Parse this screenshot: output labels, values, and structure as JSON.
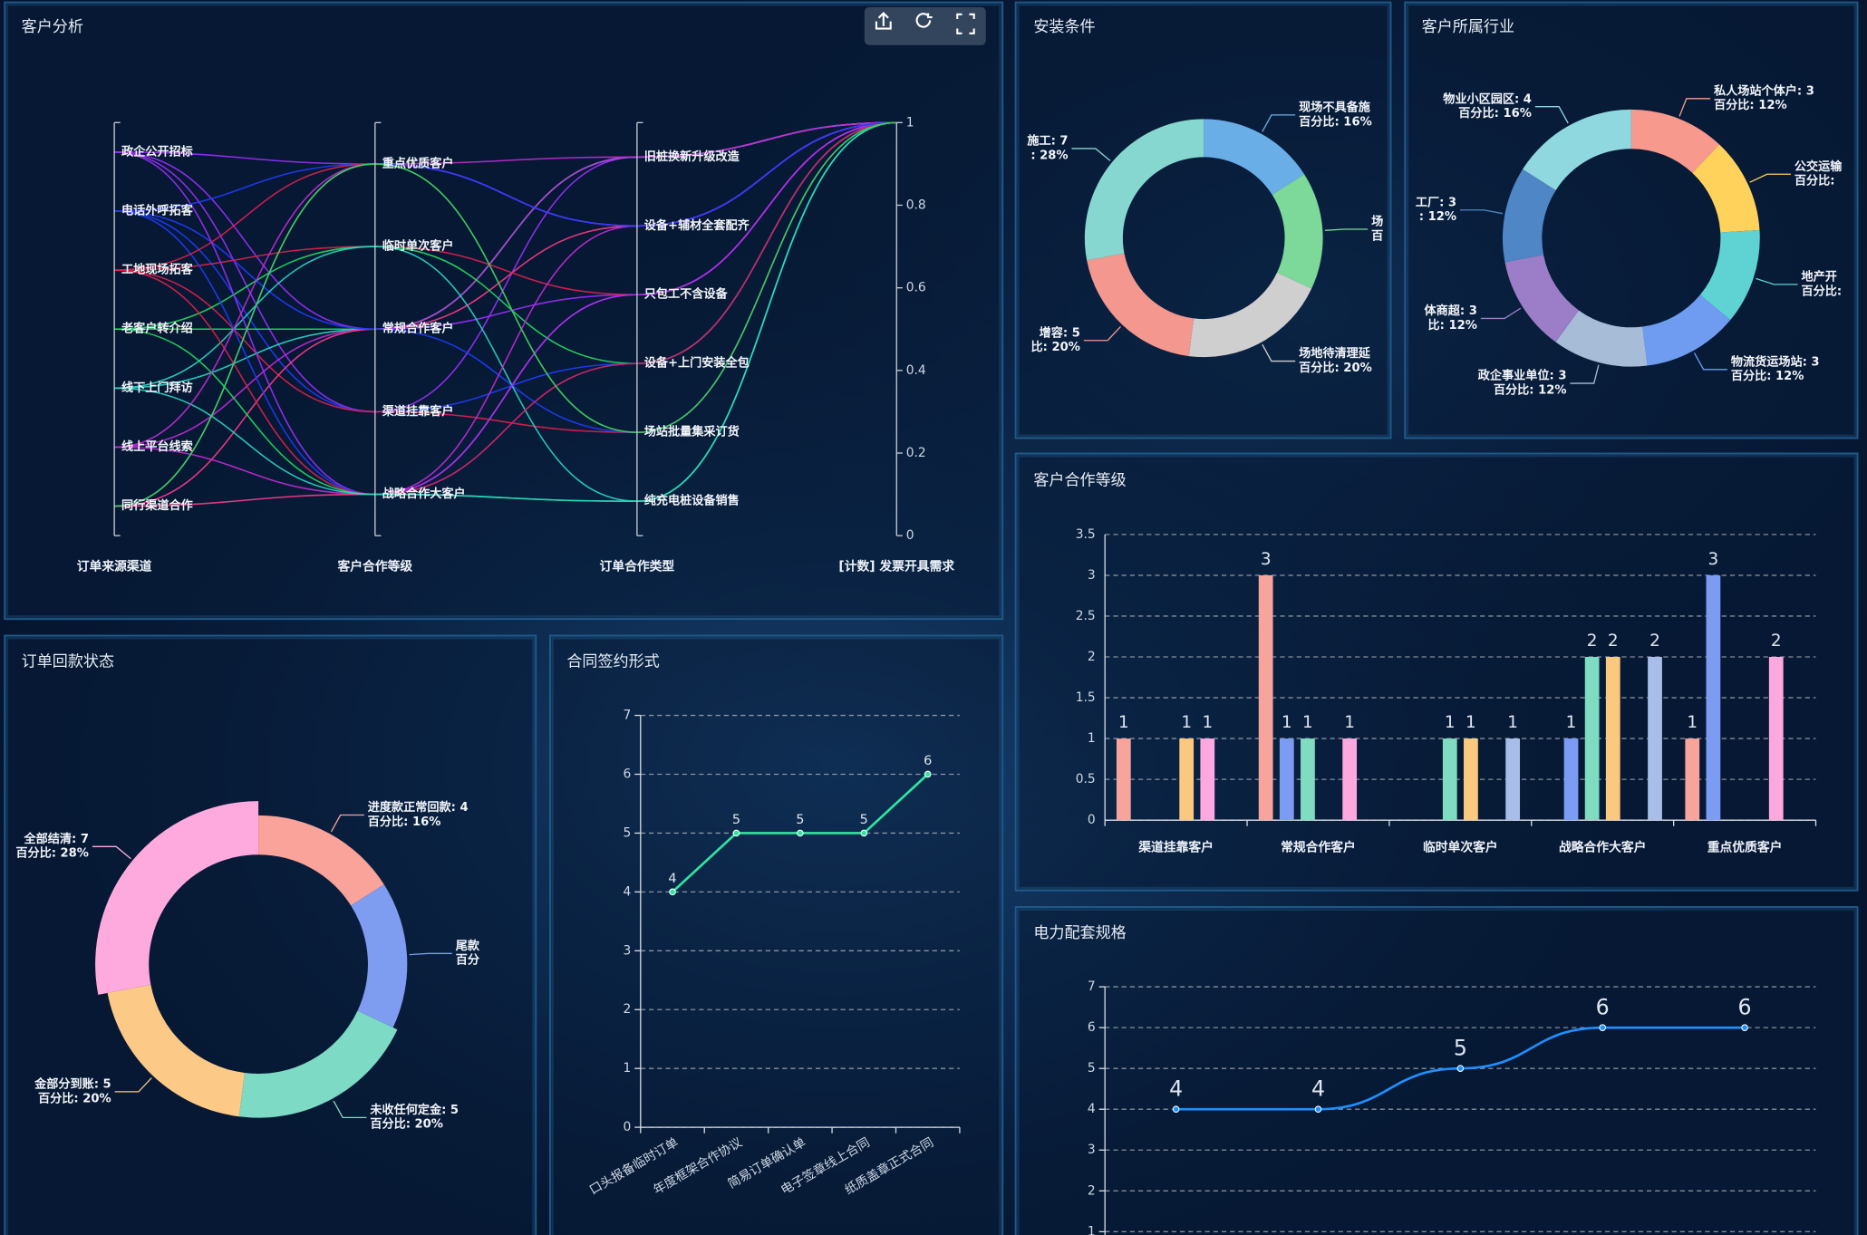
{
  "chart_data": [
    {
      "type": "parallel",
      "title": "客户分析",
      "axes": [
        {
          "name": "订单来源渠道",
          "categories": [
            "政企公开招标",
            "电话外呼拓客",
            "工地现场拓客",
            "老客户转介绍",
            "线下上门拜访",
            "线上平台线索",
            "同行渠道合作"
          ]
        },
        {
          "name": "客户合作等级",
          "categories": [
            "重点优质客户",
            "临时单次客户",
            "常规合作客户",
            "渠道挂靠客户",
            "战略合作大客户"
          ]
        },
        {
          "name": "订单合作类型",
          "categories": [
            "旧桩换新升级改造",
            "设备+辅材全套配齐",
            "只包工不含设备",
            "设备+上门安装全包",
            "场站批量集采订货",
            "纯充电桩设备销售"
          ]
        },
        {
          "name": "[计数] 发票开具需求",
          "ylim": [
            0,
            1
          ],
          "yticks": [
            0,
            0.2,
            0.4,
            0.6,
            0.8,
            1
          ]
        }
      ],
      "series": [
        {
          "color": "#9b30ff",
          "values": [
            "政企公开招标",
            "渠道挂靠客户",
            "旧桩换新升级改造",
            1
          ]
        },
        {
          "color": "#1f3dff",
          "values": [
            "电话外呼拓客",
            "渠道挂靠客户",
            "设备+上门安装全包",
            1
          ]
        },
        {
          "color": "#e0204f",
          "values": [
            "工地现场拓客",
            "渠道挂靠客户",
            "场站批量集采订货",
            1
          ]
        },
        {
          "color": "#20e060",
          "values": [
            "老客户转介绍",
            "常规合作客户",
            "旧桩换新升级改造",
            1
          ]
        },
        {
          "color": "#2ad8c8",
          "values": [
            "线下上门拜访",
            "常规合作客户",
            "旧桩换新升级改造",
            1
          ]
        },
        {
          "color": "#c42bd6",
          "values": [
            "线上平台线索",
            "常规合作客户",
            "旧桩换新升级改造",
            1
          ]
        },
        {
          "color": "#ff3b8a",
          "values": [
            "同行渠道合作",
            "常规合作客户",
            "设备+辅材全套配齐",
            1
          ]
        },
        {
          "color": "#9b30ff",
          "values": [
            "政企公开招标",
            "常规合作客户",
            "只包工不含设备",
            1
          ]
        },
        {
          "color": "#1f3dff",
          "values": [
            "电话外呼拓客",
            "常规合作客户",
            "场站批量集采订货",
            1
          ]
        },
        {
          "color": "#e0204f",
          "values": [
            "工地现场拓客",
            "临时单次客户",
            "只包工不含设备",
            1
          ]
        },
        {
          "color": "#20e060",
          "values": [
            "老客户转介绍",
            "临时单次客户",
            "设备+上门安装全包",
            1
          ]
        },
        {
          "color": "#2ad8c8",
          "values": [
            "线下上门拜访",
            "临时单次客户",
            "纯充电桩设备销售",
            1
          ]
        },
        {
          "color": "#c42bd6",
          "values": [
            "线上平台线索",
            "战略合作大客户",
            "设备+辅材全套配齐",
            1
          ]
        },
        {
          "color": "#ff3b8a",
          "values": [
            "同行渠道合作",
            "战略合作大客户",
            "只包工不含设备",
            1
          ]
        },
        {
          "color": "#9b30ff",
          "values": [
            "政企公开招标",
            "战略合作大客户",
            "只包工不含设备",
            1
          ]
        },
        {
          "color": "#1f3dff",
          "values": [
            "电话外呼拓客",
            "战略合作大客户",
            "设备+上门安装全包",
            1
          ]
        },
        {
          "color": "#e0204f",
          "values": [
            "工地现场拓客",
            "战略合作大客户",
            "设备+上门安装全包",
            1
          ]
        },
        {
          "color": "#20e060",
          "values": [
            "老客户转介绍",
            "战略合作大客户",
            "纯充电桩设备销售",
            1
          ]
        },
        {
          "color": "#2ad8c8",
          "values": [
            "线下上门拜访",
            "战略合作大客户",
            "纯充电桩设备销售",
            1
          ]
        },
        {
          "color": "#c42bd6",
          "values": [
            "线上平台线索",
            "重点优质客户",
            "旧桩换新升级改造",
            1
          ]
        },
        {
          "color": "#ff3b8a",
          "values": [
            "同行渠道合作",
            "重点优质客户",
            "设备+辅材全套配齐",
            1
          ]
        },
        {
          "color": "#9b30ff",
          "values": [
            "政企公开招标",
            "重点优质客户",
            "设备+辅材全套配齐",
            1
          ]
        },
        {
          "color": "#1f3dff",
          "values": [
            "电话外呼拓客",
            "重点优质客户",
            "设备+辅材全套配齐",
            1
          ]
        },
        {
          "color": "#e0204f",
          "values": [
            "工地现场拓客",
            "重点优质客户",
            "场站批量集采订货",
            1
          ]
        },
        {
          "color": "#20e060",
          "values": [
            "同行渠道合作",
            "重点优质客户",
            "场站批量集采订货",
            1
          ]
        }
      ]
    },
    {
      "type": "pie",
      "title": "安装条件",
      "values": [
        4,
        4,
        5,
        5,
        7
      ],
      "colors": [
        "#6aaee8",
        "#7cd99a",
        "#cfcfcf",
        "#f4978e",
        "#86d7d0"
      ],
      "value_labels": [
        [
          "现场不具备施",
          "百分比: 16%"
        ],
        [
          "场",
          "百"
        ],
        [
          "场地待清理延",
          "百分比: 20%"
        ],
        [
          "增容: 5",
          "比: 20%"
        ],
        [
          "施工: 7",
          ": 28%"
        ]
      ]
    },
    {
      "type": "pie",
      "title": "客户所属行业",
      "values": [
        3,
        3,
        3,
        3,
        3,
        3,
        3,
        4
      ],
      "colors": [
        "#f8998d",
        "#ffd25c",
        "#5fd3d3",
        "#6f9cf0",
        "#a7bcd6",
        "#9b7dc8",
        "#4f86c6",
        "#8fd8e0"
      ],
      "value_labels": [
        [
          "私人场站个体户: 3",
          "百分比: 12%"
        ],
        [
          "公交运输",
          "百分比:"
        ],
        [
          "地产开",
          "百分比:"
        ],
        [
          "物流货运场站: 3",
          "百分比: 12%"
        ],
        [
          "政企事业单位: 3",
          "百分比: 12%"
        ],
        [
          "体商超: 3",
          "比: 12%"
        ],
        [
          "工厂: 3",
          ": 12%"
        ],
        [
          "物业小区园区: 4",
          "百分比: 16%"
        ]
      ]
    },
    {
      "type": "bar",
      "title": "客户合作等级",
      "categories": [
        "渠道挂靠客户",
        "常规合作客户",
        "临时单次客户",
        "战略合作大客户",
        "重点优质客户"
      ],
      "series": [
        {
          "color": "#f7a49d",
          "values": [
            1,
            3,
            null,
            null,
            1
          ]
        },
        {
          "color": "#7b9cf2",
          "values": [
            null,
            1,
            null,
            1,
            3
          ]
        },
        {
          "color": "#80dcc0",
          "values": [
            null,
            1,
            1,
            2,
            null
          ]
        },
        {
          "color": "#fbc87f",
          "values": [
            1,
            null,
            1,
            2,
            null
          ]
        },
        {
          "color": "#fda9df",
          "values": [
            1,
            1,
            null,
            null,
            2
          ]
        },
        {
          "color": "#a9bde9",
          "values": [
            null,
            null,
            1,
            2,
            null
          ]
        }
      ],
      "ylim": [
        0,
        3.5
      ],
      "yticks": [
        0,
        0.5,
        1,
        1.5,
        2,
        2.5,
        3,
        3.5
      ],
      "grid": true
    },
    {
      "type": "pie",
      "title": "订单回款状态",
      "rose": true,
      "values": [
        4,
        4,
        5,
        5,
        7
      ],
      "colors": [
        "#f9a39a",
        "#7e9cf0",
        "#7ddac4",
        "#fcc987",
        "#ffaadf"
      ],
      "value_labels": [
        [
          "进度款正常回款: 4",
          "百分比: 16%"
        ],
        [
          "尾款",
          "百分"
        ],
        [
          "未收任何定金: 5",
          "百分比: 20%"
        ],
        [
          "金部分到账: 5",
          "百分比: 20%"
        ],
        [
          "全部结清: 7",
          "百分比: 28%"
        ]
      ]
    },
    {
      "type": "line",
      "title": "合同签约形式",
      "categories": [
        "口头报备临时订单",
        "年度框架合作协议",
        "简易订单确认单",
        "电子签章线上合同",
        "纸质盖章正式合同"
      ],
      "values": [
        4,
        5,
        5,
        5,
        6
      ],
      "color": "#2ee6a0",
      "smooth": false,
      "ylim": [
        0,
        7
      ],
      "yticks": [
        0,
        1,
        2,
        3,
        4,
        5,
        6,
        7
      ],
      "grid": true
    },
    {
      "type": "line",
      "title": "电力配套规格",
      "categories": [
        null,
        null,
        null,
        null,
        null
      ],
      "values": [
        4,
        4,
        5,
        6,
        6
      ],
      "color": "#1e90ff",
      "smooth": true,
      "ylim": [
        0,
        7
      ],
      "yticks": [
        1,
        2,
        3,
        4,
        5,
        6,
        7
      ],
      "grid": true
    }
  ]
}
